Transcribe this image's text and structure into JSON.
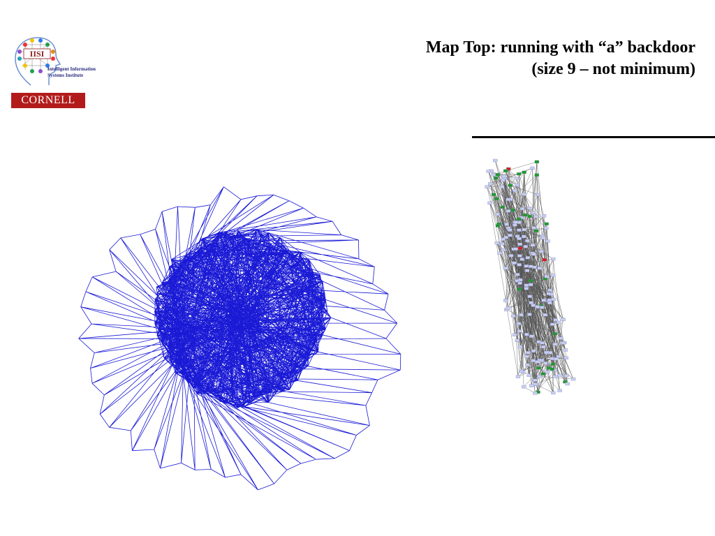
{
  "header": {
    "title_line1": "Map Top: running with “a” backdoor",
    "title_line2": "(size 9 – not minimum)"
  },
  "logos": {
    "iisi_letters": "IISI",
    "iisi_name_line1": "Intelligent Information",
    "iisi_name_line2": "Systems Institute",
    "cornell": "CORNELL"
  },
  "colors": {
    "edge_blue": "#1a1ad6",
    "node_fill": "#c8cdf2",
    "node_green": "#1e9a2a",
    "node_red": "#d61e1e",
    "cornell_red": "#b31b1b"
  }
}
